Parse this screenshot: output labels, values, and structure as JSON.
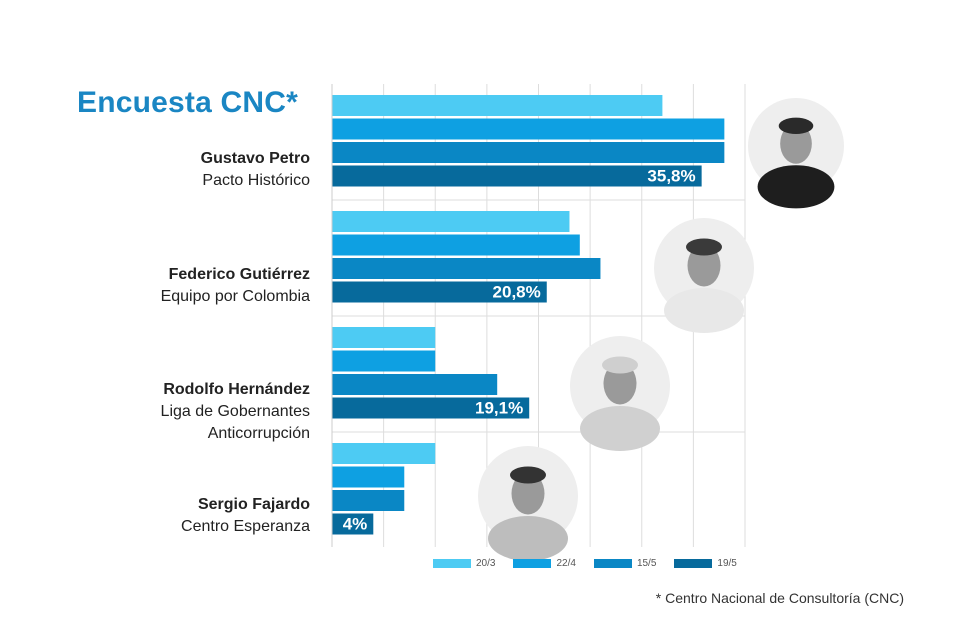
{
  "title": "Encuesta CNC*",
  "footnote": "* Centro Nacional de Consultoría (CNC)",
  "candidates": [
    {
      "name": "Gustavo Petro",
      "party": "Pacto Histórico"
    },
    {
      "name": "Federico Gutiérrez",
      "party": "Equipo por Colombia"
    },
    {
      "name": "Rodolfo Hernández",
      "party": "Liga de Gobernantes",
      "party2": "Anticorrupción"
    },
    {
      "name": "Sergio Fajardo",
      "party": "Centro Esperanza"
    }
  ],
  "legend": [
    {
      "label": "20/3",
      "color": "#4dcbf3"
    },
    {
      "label": "22/4",
      "color": "#0ea0e2"
    },
    {
      "label": "15/5",
      "color": "#0a87c5"
    },
    {
      "label": "19/5",
      "color": "#076a9c"
    }
  ],
  "chart_data": {
    "type": "bar",
    "orientation": "horizontal",
    "title": "Encuesta CNC*",
    "categories": [
      "Gustavo Petro",
      "Federico Gutiérrez",
      "Rodolfo Hernández",
      "Sergio Fajardo"
    ],
    "series": [
      {
        "name": "20/3",
        "values": [
          32,
          23,
          10,
          10
        ]
      },
      {
        "name": "22/4",
        "values": [
          38,
          24,
          10,
          7
        ]
      },
      {
        "name": "15/5",
        "values": [
          38,
          26,
          16,
          7
        ]
      },
      {
        "name": "19/5",
        "values": [
          35.8,
          20.8,
          19.1,
          4
        ]
      }
    ],
    "data_labels": [
      "35,8%",
      "20,8%",
      "19,1%",
      "4%"
    ],
    "xlim": [
      0,
      40
    ],
    "grid": true,
    "legend_position": "bottom"
  }
}
